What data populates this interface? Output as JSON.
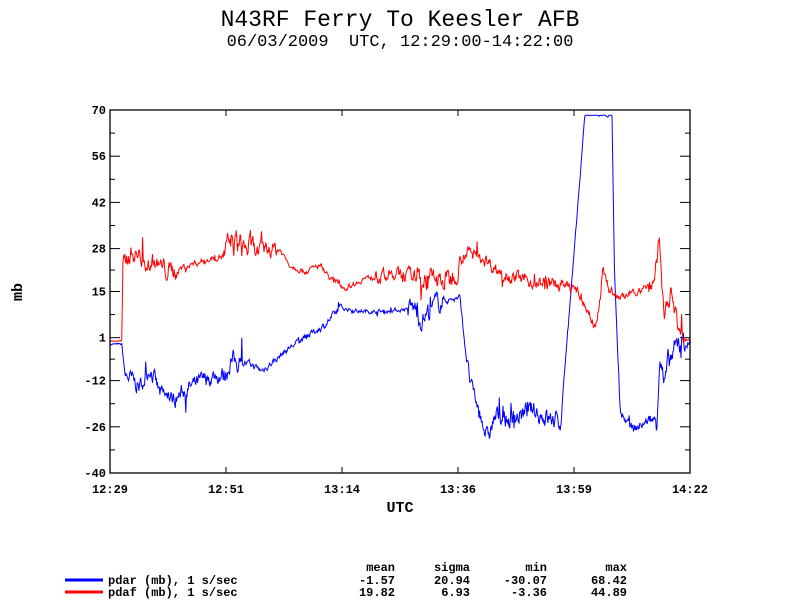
{
  "chart_data": {
    "type": "line",
    "title": "N43RF Ferry To Keesler AFB",
    "subtitle": "06/03/2009  UTC, 12:29:00-14:22:00",
    "xlabel": "UTC",
    "ylabel": "mb",
    "xlim_minutes_after_1229": [
      0,
      113
    ],
    "ylim": [
      -40,
      70
    ],
    "x_ticks": [
      {
        "label": "12:29",
        "min": 0
      },
      {
        "label": "12:51",
        "min": 22.6
      },
      {
        "label": "13:14",
        "min": 45.2
      },
      {
        "label": "13:36",
        "min": 67.8
      },
      {
        "label": "13:59",
        "min": 90.4
      },
      {
        "label": "14:22",
        "min": 113
      }
    ],
    "y_ticks": [
      "70",
      "56",
      "42",
      "28",
      "15",
      "1",
      "-12",
      "-26",
      "-40"
    ],
    "y_tick_values": [
      70,
      56,
      42,
      28,
      15,
      1,
      -12,
      -26,
      -40
    ],
    "grid": false,
    "legend_placement": "bottom",
    "stats_headers": [
      "mean",
      "sigma",
      "min",
      "max"
    ],
    "series": [
      {
        "name": "pdar (mb), 1 s/sec",
        "color": "#0000ff",
        "stats": [
          "-1.57",
          "20.94",
          "-30.07",
          "68.42"
        ],
        "points": [
          [
            0,
            -1
          ],
          [
            2.3,
            -1
          ],
          [
            2.9,
            -10
          ],
          [
            5.8,
            -14
          ],
          [
            7.8,
            -8
          ],
          [
            9.7,
            -16
          ],
          [
            12,
            -18
          ],
          [
            15.6,
            -14
          ],
          [
            19.5,
            -11
          ],
          [
            22.6,
            -10
          ],
          [
            23.4,
            -6
          ],
          [
            27.3,
            -7
          ],
          [
            29.6,
            -9
          ],
          [
            32,
            -6
          ],
          [
            35,
            -2
          ],
          [
            39,
            2
          ],
          [
            42,
            5
          ],
          [
            44.8,
            10
          ],
          [
            48.7,
            9
          ],
          [
            54,
            9
          ],
          [
            59.4,
            10
          ],
          [
            60.4,
            6
          ],
          [
            64,
            12
          ],
          [
            68.2,
            13
          ],
          [
            69,
            1
          ],
          [
            70.1,
            -12
          ],
          [
            72,
            -22
          ],
          [
            73.5,
            -30
          ],
          [
            75,
            -23
          ],
          [
            78,
            -24
          ],
          [
            82,
            -21
          ],
          [
            87.7,
            -25
          ],
          [
            88.5,
            -10
          ],
          [
            90.6,
            30
          ],
          [
            92.5,
            68.4
          ],
          [
            97.8,
            68.4
          ],
          [
            98.3,
            20
          ],
          [
            99.4,
            -22
          ],
          [
            102,
            -27
          ],
          [
            105,
            -24
          ],
          [
            106.5,
            -24
          ],
          [
            107.1,
            -3
          ],
          [
            108,
            -14
          ],
          [
            109,
            -6
          ],
          [
            111,
            -1
          ],
          [
            113,
            0
          ]
        ],
        "noise": [
          [
            0,
            0.3
          ],
          [
            3,
            2.5
          ],
          [
            22,
            3
          ],
          [
            26,
            1
          ],
          [
            45,
            0.6
          ],
          [
            58,
            3
          ],
          [
            65,
            1
          ],
          [
            69,
            2
          ],
          [
            73,
            3
          ],
          [
            88,
            0.5
          ],
          [
            98,
            0.3
          ],
          [
            99,
            1.5
          ],
          [
            106,
            4
          ],
          [
            112,
            1
          ]
        ]
      },
      {
        "name": "pdaf (mb), 1 s/sec",
        "color": "#ff0000",
        "stats": [
          "19.82",
          "6.93",
          "-3.36",
          "44.89"
        ],
        "points": [
          [
            0,
            0
          ],
          [
            2.3,
            0
          ],
          [
            2.5,
            22
          ],
          [
            3.9,
            27
          ],
          [
            7.8,
            24
          ],
          [
            11.7,
            21
          ],
          [
            17.5,
            24
          ],
          [
            22.4,
            26
          ],
          [
            23.6,
            30
          ],
          [
            29,
            27
          ],
          [
            33,
            28
          ],
          [
            35,
            23
          ],
          [
            38,
            21
          ],
          [
            41,
            23
          ],
          [
            43,
            19
          ],
          [
            45.8,
            16
          ],
          [
            49.7,
            19
          ],
          [
            56.5,
            20
          ],
          [
            62,
            19
          ],
          [
            66,
            18
          ],
          [
            69,
            27
          ],
          [
            72,
            26
          ],
          [
            76,
            21
          ],
          [
            82,
            18
          ],
          [
            87.7,
            17
          ],
          [
            90.6,
            16
          ],
          [
            93.5,
            8
          ],
          [
            94.5,
            4
          ],
          [
            95.5,
            13
          ],
          [
            96,
            22
          ],
          [
            97.5,
            15
          ],
          [
            99.4,
            13
          ],
          [
            103,
            15
          ],
          [
            106,
            18
          ],
          [
            107,
            32
          ],
          [
            108,
            5
          ],
          [
            109.4,
            16
          ],
          [
            111,
            1
          ],
          [
            113,
            0
          ]
        ],
        "noise": [
          [
            0,
            0.2
          ],
          [
            2.5,
            3
          ],
          [
            13,
            1
          ],
          [
            22,
            4
          ],
          [
            28,
            2.5
          ],
          [
            33,
            0.8
          ],
          [
            52,
            2
          ],
          [
            60,
            3.5
          ],
          [
            68,
            2
          ],
          [
            88,
            1.5
          ],
          [
            98,
            1
          ],
          [
            105,
            3
          ],
          [
            112,
            0.5
          ]
        ]
      }
    ]
  }
}
